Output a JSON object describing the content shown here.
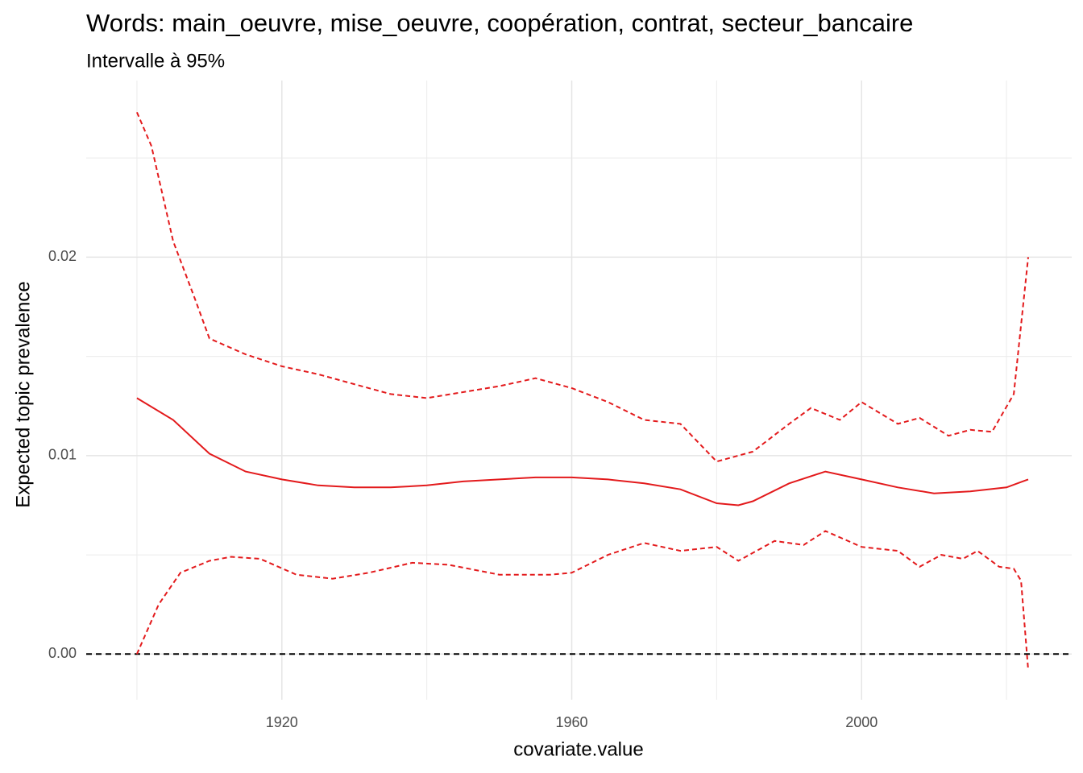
{
  "chart_data": {
    "type": "line",
    "title": "Words: main_oeuvre, mise_oeuvre, coopération, contrat, secteur_bancaire",
    "subtitle": "Intervalle à 95%",
    "x_label": "covariate.value",
    "y_label": "Expected topic prevalence",
    "xlim": [
      1893,
      2029
    ],
    "ylim": [
      -0.0023,
      0.0289
    ],
    "xticks": [
      1920,
      1960,
      2000
    ],
    "yticks": [
      {
        "value": 0,
        "label": "0.00"
      },
      {
        "value": 0.01,
        "label": "0.01"
      },
      {
        "value": 0.02,
        "label": "0.02"
      }
    ],
    "x_minor_ticks": [
      1900,
      1940,
      1980,
      2020
    ],
    "y_minor_ticks": [
      0.005,
      0.015,
      0.025
    ],
    "grid": true,
    "hline": {
      "value": 0,
      "color": "#000000",
      "dash": true
    },
    "series": [
      {
        "color": "#e31a1c",
        "dash": false,
        "x": [
          1900,
          1905,
          1910,
          1915,
          1920,
          1925,
          1930,
          1935,
          1940,
          1945,
          1950,
          1955,
          1960,
          1965,
          1970,
          1975,
          1980,
          1983,
          1985,
          1990,
          1995,
          2000,
          2005,
          2010,
          2015,
          2020,
          2023
        ],
        "values": [
          0.0129,
          0.0118,
          0.0101,
          0.0092,
          0.0088,
          0.0085,
          0.0084,
          0.0084,
          0.0085,
          0.0087,
          0.0088,
          0.0089,
          0.0089,
          0.0088,
          0.0086,
          0.0083,
          0.0076,
          0.0075,
          0.0077,
          0.0086,
          0.0092,
          0.0088,
          0.0084,
          0.0081,
          0.0082,
          0.0084,
          0.0088
        ]
      },
      {
        "color": "#e31a1c",
        "dash": true,
        "x": [
          1900,
          1902,
          1905,
          1908,
          1910,
          1915,
          1920,
          1925,
          1930,
          1935,
          1940,
          1945,
          1950,
          1955,
          1960,
          1965,
          1970,
          1975,
          1980,
          1985,
          1990,
          1993,
          1997,
          2000,
          2005,
          2008,
          2012,
          2015,
          2018,
          2021,
          2023
        ],
        "values": [
          0.0273,
          0.0256,
          0.0208,
          0.0179,
          0.0159,
          0.0151,
          0.0145,
          0.0141,
          0.0136,
          0.0131,
          0.0129,
          0.0132,
          0.0135,
          0.0139,
          0.0134,
          0.0127,
          0.0118,
          0.0116,
          0.0097,
          0.0102,
          0.0116,
          0.0124,
          0.0118,
          0.0127,
          0.0116,
          0.0119,
          0.011,
          0.0113,
          0.0112,
          0.0131,
          0.02
        ]
      },
      {
        "color": "#e31a1c",
        "dash": true,
        "x": [
          1900,
          1903,
          1906,
          1910,
          1913,
          1917,
          1922,
          1927,
          1932,
          1938,
          1943,
          1950,
          1957,
          1960,
          1965,
          1970,
          1975,
          1980,
          1983,
          1988,
          1992,
          1995,
          2000,
          2005,
          2008,
          2011,
          2014,
          2016,
          2019,
          2021,
          2022,
          2023
        ],
        "values": [
          0.0,
          0.0025,
          0.0041,
          0.0047,
          0.0049,
          0.0048,
          0.004,
          0.0038,
          0.0041,
          0.0046,
          0.0045,
          0.004,
          0.004,
          0.0041,
          0.005,
          0.0056,
          0.0052,
          0.0054,
          0.0047,
          0.0057,
          0.0055,
          0.0062,
          0.0054,
          0.0052,
          0.0044,
          0.005,
          0.0048,
          0.0052,
          0.0044,
          0.0043,
          0.0037,
          -0.0008
        ]
      }
    ]
  }
}
